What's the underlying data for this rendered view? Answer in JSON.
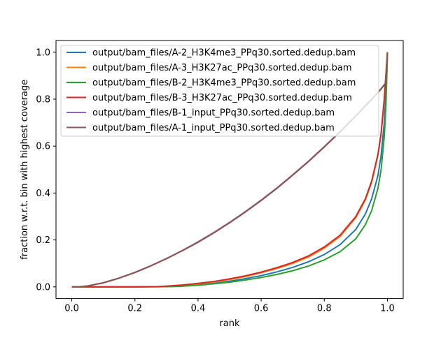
{
  "chart_data": {
    "type": "line",
    "title": "",
    "xlabel": "rank",
    "ylabel": "fraction w.r.t. bin with highest coverage",
    "xlim": [
      -0.05,
      1.05
    ],
    "ylim": [
      -0.05,
      1.05
    ],
    "xticks": [
      0.0,
      0.2,
      0.4,
      0.6,
      0.8,
      1.0
    ],
    "xtick_labels": [
      "0.0",
      "0.2",
      "0.4",
      "0.6",
      "0.8",
      "1.0"
    ],
    "yticks": [
      0.0,
      0.2,
      0.4,
      0.6,
      0.8,
      1.0
    ],
    "ytick_labels": [
      "0.0",
      "0.2",
      "0.4",
      "0.6",
      "0.8",
      "1.0"
    ],
    "grid": false,
    "legend_position": "top-left",
    "series": [
      {
        "name": "output/bam_files/A-2_H3K4me3_PPq30.sorted.dedup.bam",
        "color": "#1f77b4",
        "x": [
          0,
          0.05,
          0.1,
          0.2,
          0.3,
          0.35,
          0.4,
          0.45,
          0.5,
          0.55,
          0.6,
          0.65,
          0.7,
          0.75,
          0.8,
          0.85,
          0.9,
          0.93,
          0.95,
          0.97,
          0.98,
          0.99,
          0.995,
          1.0
        ],
        "y": [
          0,
          0,
          0,
          0,
          0.001,
          0.003,
          0.008,
          0.015,
          0.024,
          0.035,
          0.048,
          0.064,
          0.083,
          0.107,
          0.138,
          0.18,
          0.245,
          0.31,
          0.375,
          0.475,
          0.56,
          0.7,
          0.82,
          0.99
        ]
      },
      {
        "name": "output/bam_files/A-3_H3K27ac_PPq30.sorted.dedup.bam",
        "color": "#ff7f0e",
        "x": [
          0,
          0.05,
          0.1,
          0.2,
          0.28,
          0.3,
          0.35,
          0.4,
          0.45,
          0.5,
          0.55,
          0.6,
          0.65,
          0.7,
          0.75,
          0.8,
          0.85,
          0.9,
          0.93,
          0.95,
          0.97,
          0.98,
          0.99,
          0.995,
          1.0
        ],
        "y": [
          0,
          0,
          0,
          0,
          0.001,
          0.003,
          0.007,
          0.013,
          0.021,
          0.031,
          0.044,
          0.06,
          0.078,
          0.1,
          0.127,
          0.165,
          0.215,
          0.295,
          0.37,
          0.445,
          0.56,
          0.65,
          0.8,
          0.9,
          1.0
        ]
      },
      {
        "name": "output/bam_files/B-2_H3K4me3_PPq30.sorted.dedup.bam",
        "color": "#2ca02c",
        "x": [
          0,
          0.05,
          0.1,
          0.2,
          0.3,
          0.35,
          0.4,
          0.45,
          0.5,
          0.55,
          0.6,
          0.65,
          0.7,
          0.75,
          0.8,
          0.85,
          0.9,
          0.93,
          0.95,
          0.97,
          0.98,
          0.99,
          0.995,
          1.0
        ],
        "y": [
          0,
          0,
          0,
          0,
          0.001,
          0.003,
          0.007,
          0.013,
          0.02,
          0.029,
          0.04,
          0.053,
          0.069,
          0.089,
          0.115,
          0.15,
          0.205,
          0.265,
          0.325,
          0.42,
          0.5,
          0.64,
          0.76,
          0.98
        ]
      },
      {
        "name": "output/bam_files/B-3_H3K27ac_PPq30.sorted.dedup.bam",
        "color": "#d62728",
        "x": [
          0,
          0.05,
          0.1,
          0.2,
          0.27,
          0.3,
          0.35,
          0.4,
          0.45,
          0.5,
          0.55,
          0.6,
          0.65,
          0.7,
          0.75,
          0.8,
          0.85,
          0.9,
          0.93,
          0.95,
          0.97,
          0.98,
          0.99,
          0.995,
          1.0
        ],
        "y": [
          0,
          0,
          0,
          0,
          0.001,
          0.003,
          0.008,
          0.015,
          0.023,
          0.034,
          0.047,
          0.063,
          0.082,
          0.104,
          0.132,
          0.17,
          0.22,
          0.3,
          0.375,
          0.45,
          0.565,
          0.655,
          0.8,
          0.9,
          1.0
        ]
      },
      {
        "name": "output/bam_files/B-1_input_PPq30.sorted.dedup.bam",
        "color": "#9467bd",
        "x": [
          0,
          0.02,
          0.05,
          0.1,
          0.15,
          0.2,
          0.25,
          0.3,
          0.35,
          0.4,
          0.45,
          0.5,
          0.55,
          0.6,
          0.65,
          0.7,
          0.75,
          0.8,
          0.85,
          0.9,
          0.95,
          0.98,
          0.99,
          0.995,
          1.0
        ],
        "y": [
          0,
          0,
          0.004,
          0.018,
          0.038,
          0.062,
          0.09,
          0.121,
          0.155,
          0.192,
          0.232,
          0.275,
          0.321,
          0.37,
          0.422,
          0.478,
          0.536,
          0.598,
          0.662,
          0.73,
          0.8,
          0.845,
          0.862,
          0.872,
          0.99
        ]
      },
      {
        "name": "output/bam_files/A-1_input_PPq30.sorted.dedup.bam",
        "color": "#8c564b",
        "x": [
          0,
          0.02,
          0.05,
          0.1,
          0.15,
          0.2,
          0.25,
          0.3,
          0.35,
          0.4,
          0.45,
          0.5,
          0.55,
          0.6,
          0.65,
          0.7,
          0.75,
          0.8,
          0.85,
          0.9,
          0.95,
          0.98,
          0.99,
          0.995,
          1.0
        ],
        "y": [
          0,
          0,
          0.004,
          0.017,
          0.037,
          0.061,
          0.089,
          0.12,
          0.154,
          0.19,
          0.23,
          0.273,
          0.319,
          0.368,
          0.42,
          0.476,
          0.534,
          0.596,
          0.66,
          0.728,
          0.798,
          0.843,
          0.86,
          0.87,
          1.0
        ]
      }
    ]
  }
}
